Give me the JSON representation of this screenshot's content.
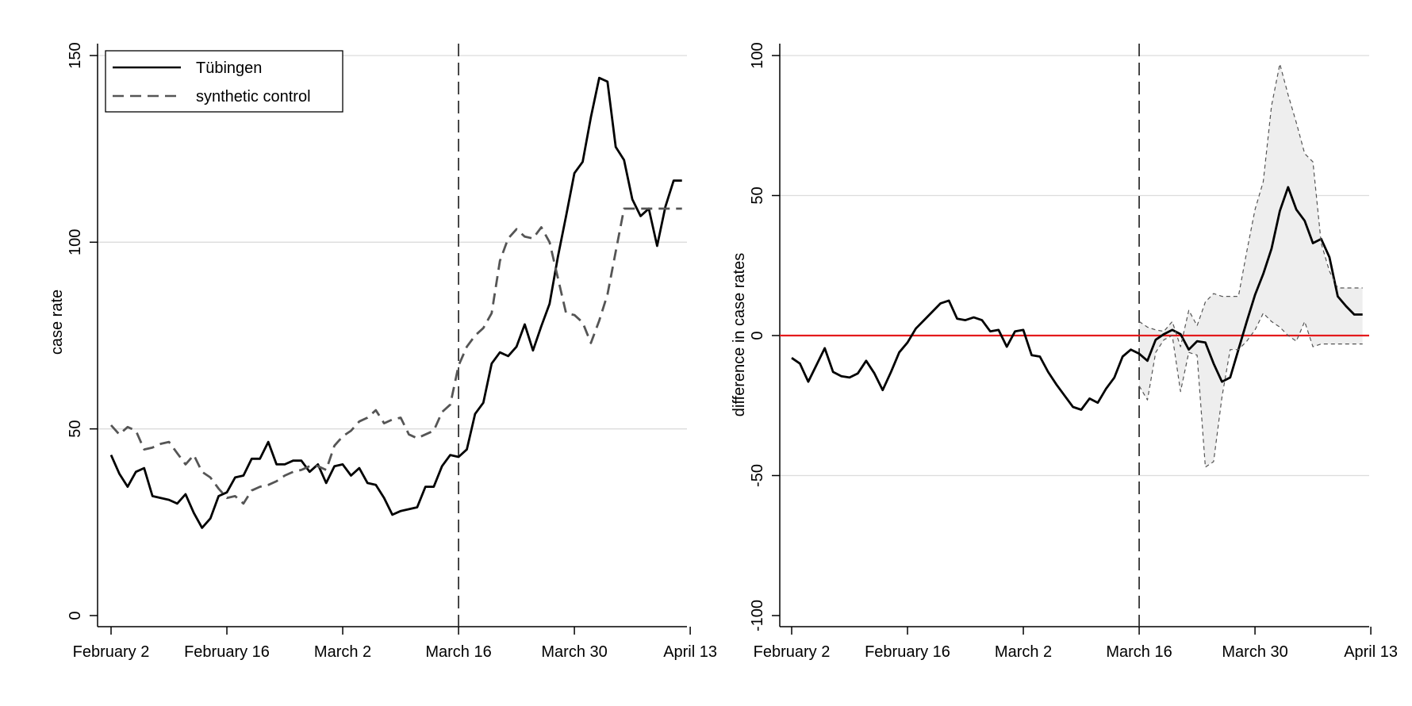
{
  "chart_data": [
    {
      "type": "line",
      "ylabel": "case rate",
      "xlabel": "",
      "ylim": [
        0,
        150
      ],
      "yticks": [
        0,
        50,
        100,
        150
      ],
      "x_ticks": [
        {
          "day": 0,
          "label": "February 2"
        },
        {
          "day": 14,
          "label": "February 16"
        },
        {
          "day": 28,
          "label": "March 2"
        },
        {
          "day": 42,
          "label": "March 16"
        },
        {
          "day": 56,
          "label": "March 30"
        },
        {
          "day": 70,
          "label": "April 13"
        }
      ],
      "x_unit": "days since February 2",
      "intervention_day": 42,
      "grid": true,
      "legend": {
        "placement": "top-left"
      },
      "series": [
        {
          "name": "Tübingen",
          "color": "#000000",
          "style": "solid",
          "x": [
            0,
            1,
            2,
            3,
            4,
            5,
            6,
            7,
            8,
            9,
            10,
            11,
            12,
            13,
            14,
            15,
            16,
            17,
            18,
            19,
            20,
            21,
            22,
            23,
            24,
            25,
            26,
            27,
            28,
            29,
            30,
            31,
            32,
            33,
            34,
            35,
            36,
            37,
            38,
            39,
            40,
            41,
            42,
            43,
            44,
            45,
            46,
            47,
            48,
            49,
            50,
            51,
            52,
            53,
            54,
            55,
            56,
            57,
            58,
            59,
            60,
            61,
            62,
            63,
            64,
            65,
            66,
            67,
            68,
            69
          ],
          "y": [
            43,
            38,
            34.5,
            38.5,
            39.5,
            32,
            31.5,
            31,
            30,
            32.5,
            27.5,
            23.5,
            26,
            32,
            33,
            37,
            37.5,
            42,
            42,
            46.5,
            40.5,
            40.5,
            41.5,
            41.5,
            38.5,
            40.5,
            35.5,
            40,
            40.5,
            37.5,
            39.5,
            35.5,
            35,
            31.5,
            27,
            28,
            28.5,
            29,
            34.5,
            34.5,
            40,
            43,
            42.5,
            44.5,
            54,
            57,
            67.5,
            70.5,
            69.5,
            72,
            78,
            71,
            77.5,
            83.5,
            96,
            107,
            118.5,
            121.5,
            133.5,
            144,
            143,
            125.5,
            122,
            111.5,
            107,
            109,
            99,
            109.5,
            116.5,
            116.5
          ]
        },
        {
          "name": "synthetic control",
          "color": "#555555",
          "style": "dashed",
          "x": [
            0,
            1,
            2,
            3,
            4,
            5,
            6,
            7,
            8,
            9,
            10,
            11,
            12,
            13,
            14,
            15,
            16,
            17,
            18,
            19,
            20,
            21,
            22,
            23,
            24,
            25,
            26,
            27,
            28,
            29,
            30,
            31,
            32,
            33,
            34,
            35,
            36,
            37,
            38,
            39,
            40,
            41,
            42,
            43,
            44,
            45,
            46,
            47,
            48,
            49,
            50,
            51,
            52,
            53,
            54,
            55,
            56,
            57,
            58,
            59,
            60,
            61,
            62,
            63,
            64,
            65,
            66,
            67,
            68,
            69
          ],
          "y": [
            51,
            48.5,
            50.5,
            49.5,
            44.5,
            45,
            46,
            46.5,
            43.5,
            40.5,
            43,
            38.5,
            37,
            34,
            31.5,
            32,
            30,
            33.5,
            34.5,
            35,
            36,
            37.5,
            38.5,
            39,
            40,
            40,
            39,
            45.5,
            48,
            49.5,
            52,
            53,
            55,
            51.5,
            52.5,
            53,
            48.5,
            47.5,
            48.5,
            49.5,
            54.5,
            56.5,
            67,
            72,
            75,
            77,
            81,
            95,
            101,
            103.5,
            101.5,
            101,
            104,
            100,
            90.5,
            81,
            80.5,
            78.5,
            73,
            79,
            86,
            97.5,
            109,
            109,
            109,
            109,
            109,
            109,
            109,
            109
          ]
        }
      ]
    },
    {
      "type": "line",
      "ylabel": "difference in case rates",
      "xlabel": "",
      "ylim": [
        -100,
        100
      ],
      "yticks": [
        -100,
        -50,
        0,
        50,
        100
      ],
      "x_ticks": [
        {
          "day": 0,
          "label": "February 2"
        },
        {
          "day": 14,
          "label": "February 16"
        },
        {
          "day": 28,
          "label": "March 2"
        },
        {
          "day": 42,
          "label": "March 16"
        },
        {
          "day": 56,
          "label": "March 30"
        },
        {
          "day": 70,
          "label": "April 13"
        }
      ],
      "x_unit": "days since February 2",
      "intervention_day": 42,
      "zero_line_color": "#e41a1c",
      "grid": true,
      "series": [
        {
          "name": "difference",
          "color": "#000000",
          "style": "solid",
          "x": [
            0,
            1,
            2,
            3,
            4,
            5,
            6,
            7,
            8,
            9,
            10,
            11,
            12,
            13,
            14,
            15,
            16,
            17,
            18,
            19,
            20,
            21,
            22,
            23,
            24,
            25,
            26,
            27,
            28,
            29,
            30,
            31,
            32,
            33,
            34,
            35,
            36,
            37,
            38,
            39,
            40,
            41,
            42,
            43,
            44,
            45,
            46,
            47,
            48,
            49,
            50,
            51,
            52,
            53,
            54,
            55,
            56,
            57,
            58,
            59,
            60,
            61,
            62,
            63,
            64,
            65,
            66,
            67,
            68,
            69
          ],
          "y": [
            -8,
            -10,
            -16.5,
            -10.5,
            -4.5,
            -13,
            -14.5,
            -15,
            -13.5,
            -9,
            -13.5,
            -19.5,
            -13,
            -6,
            -2.5,
            2.5,
            5.5,
            8.5,
            11.5,
            12.5,
            6,
            5.5,
            6.5,
            5.5,
            1.5,
            2,
            -4,
            1.5,
            2,
            -7,
            -7.5,
            -13,
            -17.5,
            -21.5,
            -25.5,
            -26.5,
            -22.5,
            -24,
            -19,
            -15,
            -7.5,
            -5,
            -6.5,
            -9,
            -1.5,
            0.5,
            2,
            0.5,
            -5,
            -2,
            -2.5,
            -10,
            -16.5,
            -15,
            -5,
            5,
            14.5,
            22,
            31,
            44.5,
            53,
            45,
            41,
            33,
            34.5,
            28,
            14,
            10.5,
            7.5,
            7.5
          ]
        },
        {
          "name": "upper bound",
          "color": "#555555",
          "style": "dashed-thin",
          "x": [
            42,
            43,
            44,
            45,
            46,
            47,
            48,
            49,
            50,
            51,
            52,
            53,
            54,
            55,
            56,
            57,
            58,
            59,
            60,
            61,
            62,
            63,
            64,
            65,
            66,
            67,
            68,
            69
          ],
          "y": [
            5,
            3,
            2,
            1.5,
            5,
            -4,
            9,
            3.5,
            12,
            15,
            14,
            14,
            14,
            30,
            45,
            55,
            82,
            97,
            86,
            76,
            65,
            62,
            33,
            23,
            17,
            17,
            17,
            17
          ]
        },
        {
          "name": "lower bound",
          "color": "#555555",
          "style": "dashed-thin",
          "x": [
            42,
            43,
            44,
            45,
            46,
            47,
            48,
            49,
            50,
            51,
            52,
            53,
            54,
            55,
            56,
            57,
            58,
            59,
            60,
            61,
            62,
            63,
            64,
            65,
            66,
            67,
            68,
            69
          ],
          "y": [
            -18,
            -23,
            -6,
            -1.5,
            0,
            -20,
            -6,
            -7,
            -47,
            -45,
            -22,
            -5,
            -5,
            -2,
            2,
            8,
            5,
            3,
            0,
            -2,
            5,
            -4,
            -3,
            -3,
            -3,
            -3,
            -3,
            -3
          ]
        }
      ]
    }
  ],
  "legend_items": [
    {
      "label": "Tübingen"
    },
    {
      "label": "synthetic control"
    }
  ]
}
